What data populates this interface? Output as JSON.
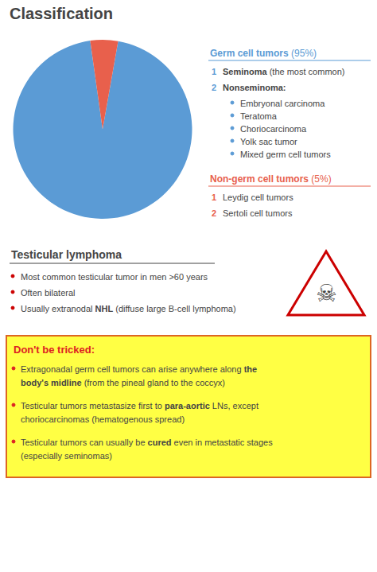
{
  "chart_data": {
    "type": "pie",
    "title": "Classification",
    "categories": [
      "Germ cell tumors",
      "Non-germ cell tumors"
    ],
    "values": [
      95,
      5
    ],
    "value_labels": [
      " (95%)",
      " (5%)"
    ],
    "colors": [
      "#5b9bd5",
      "#e8604c"
    ],
    "annotations": [
      {
        "items": [
          {
            "number": "1",
            "text": [
              "Seminoma",
              " (the most common)"
            ]
          },
          {
            "number": "2",
            "text": [
              "Nonseminoma:"
            ],
            "bullets": [
              "Embryonal carcinoma",
              "Teratoma",
              "Choriocarcinoma",
              "Yolk sac tumor",
              "Mixed germ cell tumors"
            ]
          }
        ]
      },
      {
        "items": [
          {
            "number": "1",
            "text": [
              "Leydig cell tumors"
            ]
          },
          {
            "number": "2",
            "text": [
              "Sertoli cell tumors"
            ]
          }
        ]
      },
      {
        "title": "Testicular lymphoma",
        "icon": "☠",
        "color": "#cc0000",
        "bullets": [
          [
            "Most common testicular tumor in men >60 years"
          ],
          [
            "Often bilateral"
          ],
          [
            "Usually extranodal ",
            "NHL",
            " (diffuse large B-cell lymphoma)"
          ]
        ]
      },
      {
        "title": "Don't be tricked:",
        "color": "#dd2222",
        "colors": [
          "#ffff44",
          "#dd6622"
        ],
        "bullets": [
          [
            "Extragonadal germ cell tumors can arise anywhere along ",
            "the\nbody's midline",
            " (from the pineal gland to the coccyx)"
          ],
          [
            "Testicular tumors metastasize first to ",
            "para-aortic",
            " LNs, except\nchoriocarcinomas (hematogenous spread)"
          ],
          [
            "Testicular tumors can usually be ",
            "cured",
            " even in metastatic stages\n(especially seminomas)"
          ]
        ]
      }
    ]
  }
}
